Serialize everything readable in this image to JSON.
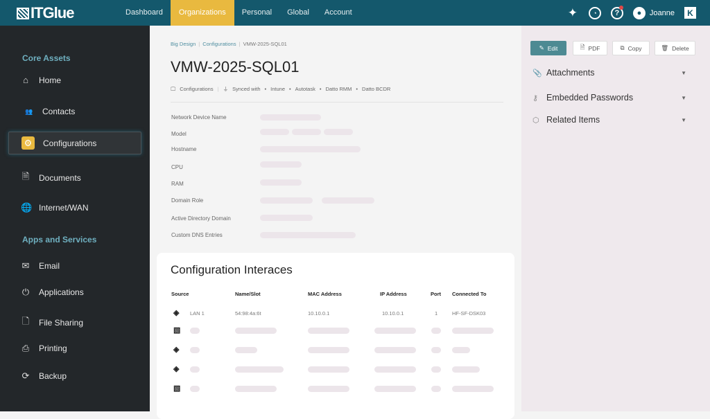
{
  "header": {
    "logo": "ITGlue",
    "nav": [
      "Dashboard",
      "Organizations",
      "Personal",
      "Global",
      "Account"
    ],
    "active_nav": "Organizations",
    "user": "Joanne",
    "colors": {
      "header": "#14586c",
      "accent": "#e9b93f",
      "notification": "#e04848"
    }
  },
  "sidebar": {
    "sections": [
      {
        "title": "Core Assets",
        "items": [
          "Home",
          "Contacts",
          "Configurations",
          "Documents",
          "Internet/WAN"
        ]
      },
      {
        "title": "Apps and Services",
        "items": [
          "Email",
          "Applications",
          "File Sharing",
          "Printing",
          "Backup"
        ]
      }
    ],
    "active": "Configurations"
  },
  "main": {
    "breadcrumb": [
      "Big Design",
      "Configurations",
      "VMW-2025-SQL01"
    ],
    "title": "VMW-2025-SQL01",
    "meta": {
      "type": "Configurations",
      "synced_label": "Synced with",
      "synced": [
        "Intune",
        "Autotask",
        "Datto RMM",
        "Datto BCDR"
      ]
    },
    "fields": [
      "Network Device Name",
      "Model",
      "Hostname",
      "CPU",
      "RAM",
      "Domain Role",
      "Active Directory Domain",
      "Custom DNS Entries"
    ],
    "interfaces": {
      "title": "Configuration Interaces",
      "columns": [
        "Source",
        "Name/Slot",
        "MAC Address",
        "IP Address",
        "Port",
        "Connected To"
      ],
      "rows": [
        {
          "source_icon": "network-icon",
          "source": "LAN 1",
          "name_slot": "54:98:4a:6t",
          "mac": "10.10.0.1",
          "ip": "10.10.0.1",
          "port": "1",
          "connected_to": "HF-SF-DSK03"
        }
      ]
    }
  },
  "actions": {
    "edit": "Edit",
    "pdf": "PDF",
    "copy": "Copy",
    "delete": "Delete"
  },
  "panels": [
    "Attachments",
    "Embedded Passwords",
    "Related Items"
  ]
}
